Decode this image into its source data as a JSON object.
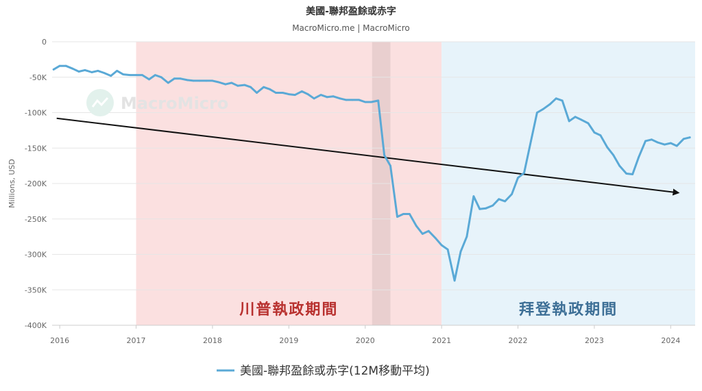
{
  "chart_data": {
    "type": "line",
    "title": "美國-聯邦盈餘或赤字",
    "subtitle": "MacroMicro.me | MacroMicro",
    "ylabel": "Millions, USD",
    "xlabel": "",
    "watermark": "MacroMicro",
    "ylim": [
      -400000,
      0
    ],
    "yticks": [
      0,
      -50000,
      -100000,
      -150000,
      -200000,
      -250000,
      -300000,
      -350000,
      -400000
    ],
    "ytick_labels": [
      "0",
      "-50K",
      "-100K",
      "-150K",
      "-200K",
      "-250K",
      "-300K",
      "-350K",
      "-400K"
    ],
    "xlim": [
      2015.9,
      2024.32
    ],
    "xticks": [
      2016,
      2017,
      2018,
      2019,
      2020,
      2021,
      2022,
      2023,
      2024
    ],
    "xtick_labels": [
      "2016",
      "2017",
      "2018",
      "2019",
      "2020",
      "2021",
      "2022",
      "2023",
      "2024"
    ],
    "grid": true,
    "legend_position": "bottom-center",
    "regions": [
      {
        "label": "川普執政期間",
        "x_start": 2017.0,
        "x_end": 2021.0,
        "color": "#fbe0e0"
      },
      {
        "label": "拜登執政期間",
        "x_start": 2021.0,
        "x_end": 2024.32,
        "color": "#e7f3fa"
      }
    ],
    "highlight": {
      "x_start": 2020.09,
      "x_end": 2020.33,
      "color": "#e9cfcf"
    },
    "trend_arrow": {
      "x_start": 2015.96,
      "y_start": -108000,
      "x_end": 2024.1,
      "y_end": -213000,
      "color": "#111111"
    },
    "series": [
      {
        "name": "美國-聯邦盈餘或赤字(12M移動平均)",
        "color": "#5aa9d6",
        "x": [
          2015.92,
          2016.0,
          2016.08,
          2016.17,
          2016.25,
          2016.33,
          2016.42,
          2016.5,
          2016.58,
          2016.67,
          2016.75,
          2016.83,
          2016.92,
          2017.0,
          2017.08,
          2017.17,
          2017.25,
          2017.33,
          2017.42,
          2017.5,
          2017.58,
          2017.67,
          2017.75,
          2017.83,
          2017.92,
          2018.0,
          2018.08,
          2018.17,
          2018.25,
          2018.33,
          2018.42,
          2018.5,
          2018.58,
          2018.67,
          2018.75,
          2018.83,
          2018.92,
          2019.0,
          2019.08,
          2019.17,
          2019.25,
          2019.33,
          2019.42,
          2019.5,
          2019.58,
          2019.67,
          2019.75,
          2019.83,
          2019.92,
          2020.0,
          2020.08,
          2020.17,
          2020.25,
          2020.33,
          2020.42,
          2020.5,
          2020.58,
          2020.67,
          2020.75,
          2020.83,
          2020.92,
          2021.0,
          2021.08,
          2021.17,
          2021.25,
          2021.33,
          2021.42,
          2021.5,
          2021.58,
          2021.67,
          2021.75,
          2021.83,
          2021.92,
          2022.0,
          2022.08,
          2022.17,
          2022.25,
          2022.33,
          2022.42,
          2022.5,
          2022.58,
          2022.67,
          2022.75,
          2022.83,
          2022.92,
          2023.0,
          2023.08,
          2023.17,
          2023.25,
          2023.33,
          2023.42,
          2023.5,
          2023.58,
          2023.67,
          2023.75,
          2023.83,
          2023.92,
          2024.0,
          2024.08,
          2024.17,
          2024.25
        ],
        "values": [
          -39000,
          -34000,
          -34000,
          -38000,
          -42000,
          -40000,
          -43000,
          -41000,
          -44000,
          -48000,
          -41000,
          -46000,
          -47000,
          -47000,
          -47000,
          -53000,
          -47000,
          -50000,
          -58000,
          -52000,
          -52000,
          -54000,
          -55000,
          -55000,
          -55000,
          -55000,
          -57000,
          -60000,
          -58000,
          -62000,
          -61000,
          -64000,
          -72000,
          -64000,
          -67000,
          -72000,
          -72000,
          -74000,
          -75000,
          -70000,
          -74000,
          -80000,
          -75000,
          -78000,
          -77000,
          -80000,
          -82000,
          -82000,
          -82000,
          -85000,
          -85000,
          -83000,
          -160000,
          -175000,
          -247000,
          -243000,
          -243000,
          -260000,
          -271000,
          -267000,
          -277000,
          -287000,
          -293000,
          -337000,
          -296000,
          -275000,
          -218000,
          -236000,
          -235000,
          -231000,
          -222000,
          -225000,
          -215000,
          -192000,
          -185000,
          -140000,
          -100000,
          -95000,
          -88000,
          -80000,
          -83000,
          -112000,
          -106000,
          -110000,
          -115000,
          -128000,
          -132000,
          -149000,
          -160000,
          -175000,
          -186000,
          -187000,
          -163000,
          -140000,
          -138000,
          -142000,
          -145000,
          -143000,
          -147000,
          -137000,
          -135000
        ]
      }
    ]
  }
}
